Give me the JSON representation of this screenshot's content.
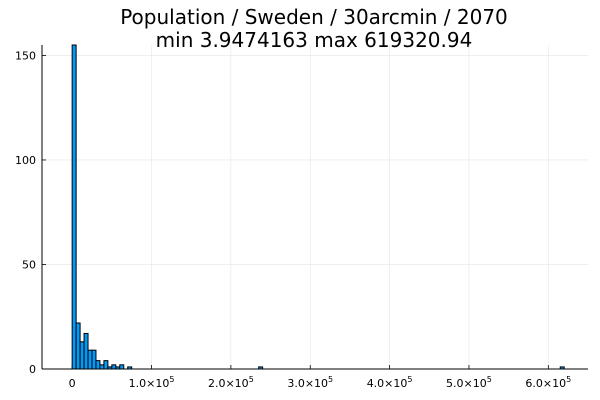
{
  "chart_data": {
    "type": "bar",
    "title_lines": [
      "Population / Sweden / 30arcmin / 2070",
      "min 3.9474163  max 619320.94"
    ],
    "xlabel": "",
    "ylabel": "",
    "bin_width": 5000,
    "xlim": [
      -38000,
      650000
    ],
    "ylim": [
      0,
      155
    ],
    "bins": [
      {
        "x0": 0,
        "x1": 5000,
        "count": 155
      },
      {
        "x0": 5000,
        "x1": 10000,
        "count": 22
      },
      {
        "x0": 10000,
        "x1": 15000,
        "count": 13
      },
      {
        "x0": 15000,
        "x1": 20000,
        "count": 17
      },
      {
        "x0": 20000,
        "x1": 25000,
        "count": 9
      },
      {
        "x0": 25000,
        "x1": 30000,
        "count": 9
      },
      {
        "x0": 30000,
        "x1": 35000,
        "count": 4
      },
      {
        "x0": 35000,
        "x1": 40000,
        "count": 2
      },
      {
        "x0": 40000,
        "x1": 45000,
        "count": 4
      },
      {
        "x0": 45000,
        "x1": 50000,
        "count": 1
      },
      {
        "x0": 50000,
        "x1": 55000,
        "count": 2
      },
      {
        "x0": 55000,
        "x1": 60000,
        "count": 1
      },
      {
        "x0": 60000,
        "x1": 65000,
        "count": 2
      },
      {
        "x0": 70000,
        "x1": 75000,
        "count": 1
      },
      {
        "x0": 235000,
        "x1": 240000,
        "count": 1
      },
      {
        "x0": 615000,
        "x1": 620000,
        "count": 1
      }
    ],
    "x_ticks": [
      {
        "value": 0,
        "label": "0"
      },
      {
        "value": 100000,
        "label": "1.0×10",
        "exp": "5"
      },
      {
        "value": 200000,
        "label": "2.0×10",
        "exp": "5"
      },
      {
        "value": 300000,
        "label": "3.0×10",
        "exp": "5"
      },
      {
        "value": 400000,
        "label": "4.0×10",
        "exp": "5"
      },
      {
        "value": 500000,
        "label": "5.0×10",
        "exp": "5"
      },
      {
        "value": 600000,
        "label": "6.0×10",
        "exp": "5"
      }
    ],
    "y_ticks": [
      {
        "value": 0,
        "label": "0"
      },
      {
        "value": 50,
        "label": "50"
      },
      {
        "value": 100,
        "label": "100"
      },
      {
        "value": 150,
        "label": "150"
      }
    ],
    "grid": true,
    "legend": false,
    "colors": {
      "bar_fill": "#009af9",
      "bar_stroke": "#000000",
      "grid": "#e6e6e6",
      "axis": "#000000"
    }
  }
}
